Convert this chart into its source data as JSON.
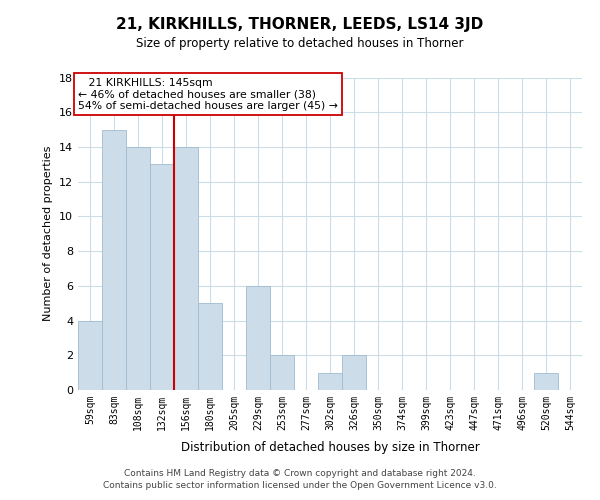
{
  "title": "21, KIRKHILLS, THORNER, LEEDS, LS14 3JD",
  "subtitle": "Size of property relative to detached houses in Thorner",
  "xlabel": "Distribution of detached houses by size in Thorner",
  "ylabel": "Number of detached properties",
  "categories": [
    "59sqm",
    "83sqm",
    "108sqm",
    "132sqm",
    "156sqm",
    "180sqm",
    "205sqm",
    "229sqm",
    "253sqm",
    "277sqm",
    "302sqm",
    "326sqm",
    "350sqm",
    "374sqm",
    "399sqm",
    "423sqm",
    "447sqm",
    "471sqm",
    "496sqm",
    "520sqm",
    "544sqm"
  ],
  "values": [
    4,
    15,
    14,
    13,
    14,
    5,
    0,
    6,
    2,
    0,
    1,
    2,
    0,
    0,
    0,
    0,
    0,
    0,
    0,
    1,
    0
  ],
  "bar_color": "#ccdce8",
  "bar_edge_color": "#a0bcd0",
  "vline_x": 3.5,
  "vline_color": "#cc0000",
  "annotation_title": "21 KIRKHILLS: 145sqm",
  "annotation_line1": "← 46% of detached houses are smaller (38)",
  "annotation_line2": "54% of semi-detached houses are larger (45) →",
  "annotation_box_color": "#ffffff",
  "annotation_box_edge": "#cc0000",
  "ylim": [
    0,
    18
  ],
  "yticks": [
    0,
    2,
    4,
    6,
    8,
    10,
    12,
    14,
    16,
    18
  ],
  "footer1": "Contains HM Land Registry data © Crown copyright and database right 2024.",
  "footer2": "Contains public sector information licensed under the Open Government Licence v3.0.",
  "bg_color": "#ffffff",
  "grid_color": "#ccdce8"
}
